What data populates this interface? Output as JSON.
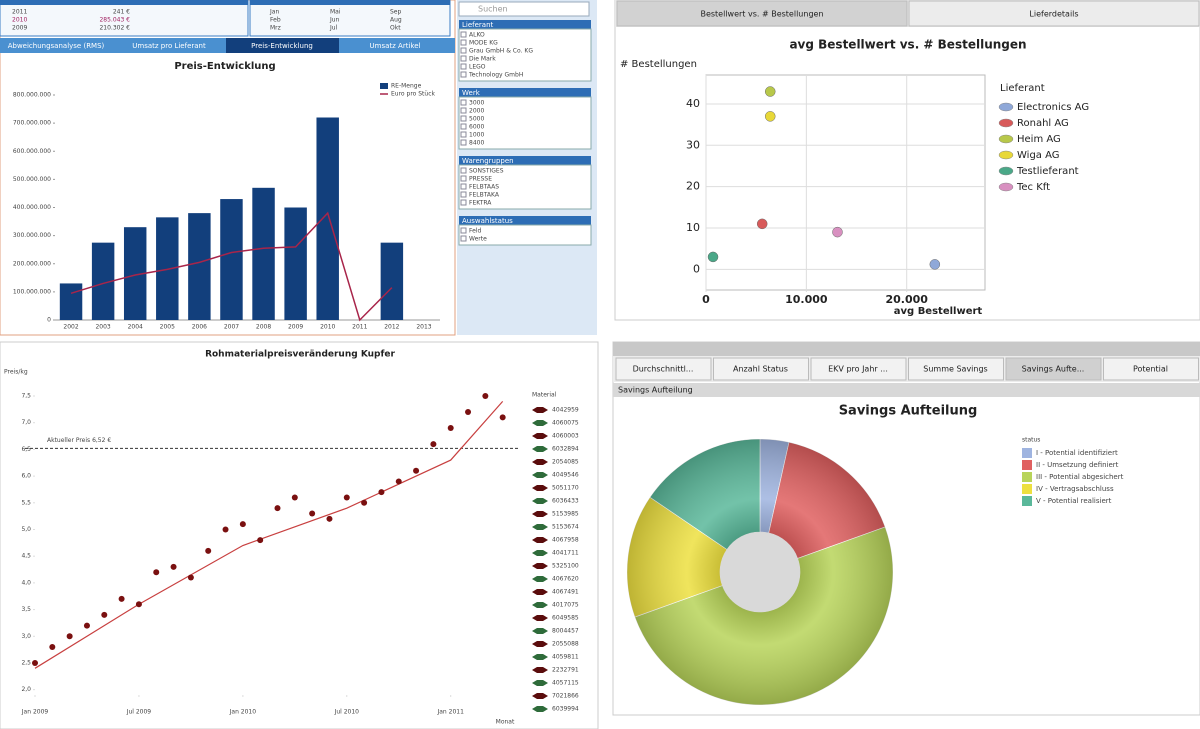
{
  "chart_data": [
    {
      "type": "bar",
      "title": "Preis-Entwicklung",
      "categories": [
        "2002",
        "2003",
        "2004",
        "2005",
        "2006",
        "2007",
        "2008",
        "2009",
        "2010",
        "2011",
        "2012",
        "2013"
      ],
      "series": [
        {
          "name": "RE-Menge",
          "color": "#123f7c",
          "values": [
            130000000,
            275000000,
            330000000,
            365000000,
            380000000,
            430000000,
            470000000,
            400000000,
            720000000,
            null,
            275000000,
            null
          ]
        },
        {
          "name": "Euro pro Stück",
          "color": "#a8254a",
          "type": "line",
          "values": [
            95000000,
            130000000,
            160000000,
            180000000,
            205000000,
            240000000,
            255000000,
            260000000,
            380000000,
            0,
            115000000,
            null
          ]
        }
      ],
      "ylim": [
        0,
        800000000
      ],
      "yticks": [
        0,
        {
          "value": 100000000,
          "label": "100.000.000"
        },
        {
          "value": 200000000,
          "label": "200.000.000"
        },
        {
          "value": 300000000,
          "label": "300.000.000"
        },
        {
          "value": 400000000,
          "label": "400.000.000"
        },
        {
          "value": 500000000,
          "label": "500.000.000"
        },
        {
          "value": 600000000,
          "label": "600.000.000"
        },
        {
          "value": 700000000,
          "label": "700.000.000"
        },
        {
          "value": 800000000,
          "label": "800.000.000"
        }
      ]
    },
    {
      "type": "scatter",
      "title": "avg Bestellwert vs. # Bestellungen",
      "x_label": "avg Bestellwert",
      "y_label": "# Bestellungen",
      "legend_title": "Lieferant",
      "grid": true,
      "series": [
        {
          "name": "Electronics AG",
          "color": "#8fa8d8",
          "x": [
            22800
          ],
          "values": [
            1.2
          ]
        },
        {
          "name": "Ronahl AG",
          "color": "#d85a5a",
          "x": [
            5600
          ],
          "values": [
            11
          ]
        },
        {
          "name": "Heim AG",
          "color": "#b8c84a",
          "x": [
            6400
          ],
          "values": [
            43
          ]
        },
        {
          "name": "Wiga AG",
          "color": "#e8d838",
          "x": [
            6400
          ],
          "values": [
            37
          ]
        },
        {
          "name": "Testlieferant",
          "color": "#4aa888",
          "x": [
            700
          ],
          "values": [
            3
          ]
        },
        {
          "name": "Tec Kft",
          "color": "#d890c0",
          "x": [
            13100
          ],
          "values": [
            9
          ]
        }
      ],
      "xlim": [
        0,
        27800
      ],
      "ylim": [
        -5,
        47
      ],
      "xticks": [
        0,
        {
          "value": 10000,
          "label": "10.000"
        },
        {
          "value": 20000,
          "label": "20.000"
        }
      ],
      "yticks": [
        0,
        10,
        20,
        30,
        40
      ]
    },
    {
      "type": "scatter",
      "title": "Rohmaterialpreisveränderung Kupfer",
      "x_label": "Monat",
      "y_label": "Preis/kg",
      "legend_title": "Material",
      "series": [
        {
          "color": "#7a1010",
          "x": [
            "2009-01",
            "2009-02",
            "2009-03",
            "2009-04",
            "2009-05",
            "2009-06",
            "2009-07",
            "2009-08",
            "2009-09",
            "2009-10",
            "2009-11",
            "2009-12",
            "2010-01",
            "2010-02",
            "2010-03",
            "2010-04",
            "2010-05",
            "2010-06",
            "2010-07",
            "2010-08",
            "2010-09",
            "2010-10",
            "2010-11",
            "2010-12",
            "2011-01",
            "2011-02",
            "2011-03",
            "2011-04"
          ],
          "values": [
            2.5,
            2.8,
            3.0,
            3.2,
            3.4,
            3.7,
            3.6,
            4.2,
            4.3,
            4.1,
            4.6,
            5.0,
            5.1,
            4.8,
            5.4,
            5.6,
            5.3,
            5.2,
            5.6,
            5.5,
            5.7,
            5.9,
            6.1,
            6.6,
            6.9,
            7.2,
            7.5,
            7.1
          ]
        }
      ],
      "trend": {
        "color": "#c84040",
        "x": [
          "2009-01",
          "2009-07",
          "2010-01",
          "2010-07",
          "2011-01",
          "2011-04"
        ],
        "values": [
          2.4,
          3.6,
          4.7,
          5.4,
          6.3,
          7.4
        ]
      },
      "reference": {
        "value": 6.52,
        "label": "Aktueller Preis 6,52 €"
      },
      "materials": [
        {
          "name": "4042959",
          "color": "#5a0c0c"
        },
        {
          "name": "4060075",
          "color": "#2e6b3a"
        },
        {
          "name": "4060003",
          "color": "#5a0c0c"
        },
        {
          "name": "6032894",
          "color": "#2e6b3a"
        },
        {
          "name": "2054085",
          "color": "#5a0c0c"
        },
        {
          "name": "4049546",
          "color": "#2e6b3a"
        },
        {
          "name": "5051170",
          "color": "#5a0c0c"
        },
        {
          "name": "6036433",
          "color": "#2e6b3a"
        },
        {
          "name": "5153985",
          "color": "#5a0c0c"
        },
        {
          "name": "5153674",
          "color": "#2e6b3a"
        },
        {
          "name": "4067958",
          "color": "#5a0c0c"
        },
        {
          "name": "4041711",
          "color": "#2e6b3a"
        },
        {
          "name": "5325100",
          "color": "#5a0c0c"
        },
        {
          "name": "4067620",
          "color": "#2e6b3a"
        },
        {
          "name": "4067491",
          "color": "#5a0c0c"
        },
        {
          "name": "4017075",
          "color": "#2e6b3a"
        },
        {
          "name": "6049585",
          "color": "#5a0c0c"
        },
        {
          "name": "8004457",
          "color": "#2e6b3a"
        },
        {
          "name": "2055088",
          "color": "#5a0c0c"
        },
        {
          "name": "4059811",
          "color": "#2e6b3a"
        },
        {
          "name": "2232791",
          "color": "#5a0c0c"
        },
        {
          "name": "4057115",
          "color": "#2e6b3a"
        },
        {
          "name": "7021866",
          "color": "#5a0c0c"
        },
        {
          "name": "6039994",
          "color": "#2e6b3a"
        }
      ],
      "xlim": [
        "2009-01",
        "2011-05"
      ],
      "ylim": [
        1.9,
        7.8
      ],
      "xticks": [
        {
          "value": "2009-01",
          "label": "Jan 2009"
        },
        {
          "value": "2009-07",
          "label": "Jul 2009"
        },
        {
          "value": "2010-01",
          "label": "Jan 2010"
        },
        {
          "value": "2010-07",
          "label": "Jul 2010"
        },
        {
          "value": "2011-01",
          "label": "Jan 2011"
        }
      ],
      "yticks": [
        {
          "value": 2,
          "label": "2,0"
        },
        {
          "value": 2.5,
          "label": "2,5"
        },
        {
          "value": 3,
          "label": "3,0"
        },
        {
          "value": 3.5,
          "label": "3,5"
        },
        {
          "value": 4,
          "label": "4,0"
        },
        {
          "value": 4.5,
          "label": "4,5"
        },
        {
          "value": 5,
          "label": "5,0"
        },
        {
          "value": 5.5,
          "label": "5,5"
        },
        {
          "value": 6,
          "label": "6,0"
        },
        {
          "value": 6.5,
          "label": "6,5"
        },
        {
          "value": 7,
          "label": "7,0"
        },
        {
          "value": 7.5,
          "label": "7,5"
        }
      ]
    },
    {
      "type": "pie",
      "title": "Savings Aufteilung",
      "legend_title": "status",
      "hole": true,
      "categories": [
        "I - Potential identifiziert",
        "II - Umsetzung definiert",
        "III - Potential abgesichert",
        "IV - Vertragsabschluss",
        "V - Potential realisiert"
      ],
      "colors": [
        "#9fb4e0",
        "#e06060",
        "#b8d45a",
        "#ede040",
        "#5ab89a"
      ],
      "values": [
        3.5,
        16,
        50,
        15,
        15.5
      ]
    }
  ],
  "ui": {
    "years": [
      [
        "2011",
        "241 €"
      ],
      [
        "2010",
        "285.043 €"
      ],
      [
        "2009",
        "210.302 €"
      ]
    ],
    "months": [
      [
        "Jan",
        "Mai",
        "Sep"
      ],
      [
        "Feb",
        "Jun",
        "Aug"
      ],
      [
        "Mrz",
        "Jul",
        "Okt"
      ]
    ],
    "tabs_top_left": [
      "Abweichungsanalyse (RMS)",
      "Umsatz pro Lieferant",
      "Preis-Entwicklung",
      "Umsatz Artikel"
    ],
    "search": "Suchen",
    "filters": [
      {
        "title": "Lieferant",
        "items": [
          "ALKO",
          "MODE KG",
          "Grau GmbH & Co. KG",
          "Die Mark",
          "LEGO",
          "Technology GmbH"
        ]
      },
      {
        "title": "Werk",
        "items": [
          "3000",
          "2000",
          "5000",
          "6000",
          "1000",
          "8400"
        ]
      },
      {
        "title": "Warengruppen",
        "items": [
          "SONSTIGES",
          "PRESSE",
          "FELBTAAS",
          "FELBTAKA",
          "FEKTRA"
        ]
      },
      {
        "title": "Auswahlstatus",
        "items": [
          "Feld",
          "Werte"
        ]
      }
    ],
    "tabs_top_right": [
      "Bestellwert vs. # Bestellungen",
      "Lieferdetails"
    ],
    "tabs_bottom_right": [
      "Durchschnittl...",
      "Anzahl Status",
      "EKV pro Jahr ...",
      "Summe Savings",
      "Savings Aufte...",
      "Potential"
    ],
    "subheader_bottom_right": "Savings Aufteilung"
  }
}
